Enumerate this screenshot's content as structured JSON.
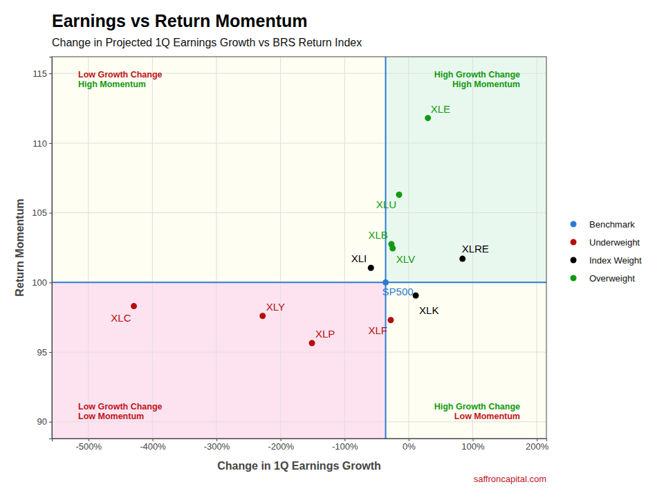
{
  "chart_data": {
    "type": "scatter",
    "title": "Earnings vs Return Momentum",
    "subtitle": "Change in Projected 1Q Earnings Growth vs BRS Return Index",
    "x_label": "Change in 1Q Earnings Growth",
    "y_label": "Return Momentum",
    "source": "saffroncapital.com",
    "xlim": [
      -557,
      215
    ],
    "ylim": [
      88.8,
      116.2
    ],
    "xticks": [
      {
        "value": -500,
        "label": "-500%"
      },
      {
        "value": -400,
        "label": "-400%"
      },
      {
        "value": -300,
        "label": "-300%"
      },
      {
        "value": -200,
        "label": "-200%"
      },
      {
        "value": -100,
        "label": "-100%"
      },
      {
        "value": 0,
        "label": "0%"
      },
      {
        "value": 100,
        "label": "100%"
      },
      {
        "value": 200,
        "label": "200%"
      }
    ],
    "yticks": [
      90,
      95,
      100,
      105,
      110,
      115
    ],
    "grid": true,
    "legend": "right",
    "series": [
      {
        "name": "Benchmark",
        "color": "#2b7bd1",
        "x": [
          -36
        ],
        "values": [
          100.0
        ],
        "labels": [
          "SP500"
        ]
      },
      {
        "name": "Underweight",
        "color": "#b50d0d",
        "x": [
          -429,
          -228,
          -151,
          -28
        ],
        "values": [
          98.3,
          97.6,
          95.65,
          97.3
        ],
        "labels": [
          "XLC",
          "XLY",
          "XLP",
          "XLF"
        ]
      },
      {
        "name": "Index Weight",
        "color": "#000000",
        "x": [
          -59,
          84,
          11
        ],
        "values": [
          101.05,
          101.7,
          99.06
        ],
        "labels": [
          "XLI",
          "XLRE",
          "XLK"
        ]
      },
      {
        "name": "Overweight",
        "color": "#119a11",
        "x": [
          30,
          -15,
          -27,
          -25
        ],
        "values": [
          111.8,
          106.3,
          102.75,
          102.45
        ],
        "labels": [
          "XLE",
          "XLU",
          "XLB",
          "XLV"
        ]
      }
    ],
    "annotations": [
      {
        "lines": [
          "Low Growth Change",
          "High Momentum"
        ],
        "colors": [
          "#c0141b",
          "#119a11"
        ]
      },
      {
        "lines": [
          "High Growth Change",
          "High Momentum"
        ],
        "colors": [
          "#119a11",
          "#119a11"
        ]
      },
      {
        "lines": [
          "Low Growth Change",
          "Low Momentum"
        ],
        "colors": [
          "#c0141b",
          "#c0141b"
        ]
      },
      {
        "lines": [
          "High Growth Change",
          "Low Momentum"
        ],
        "colors": [
          "#119a11",
          "#c0141b"
        ]
      }
    ]
  }
}
